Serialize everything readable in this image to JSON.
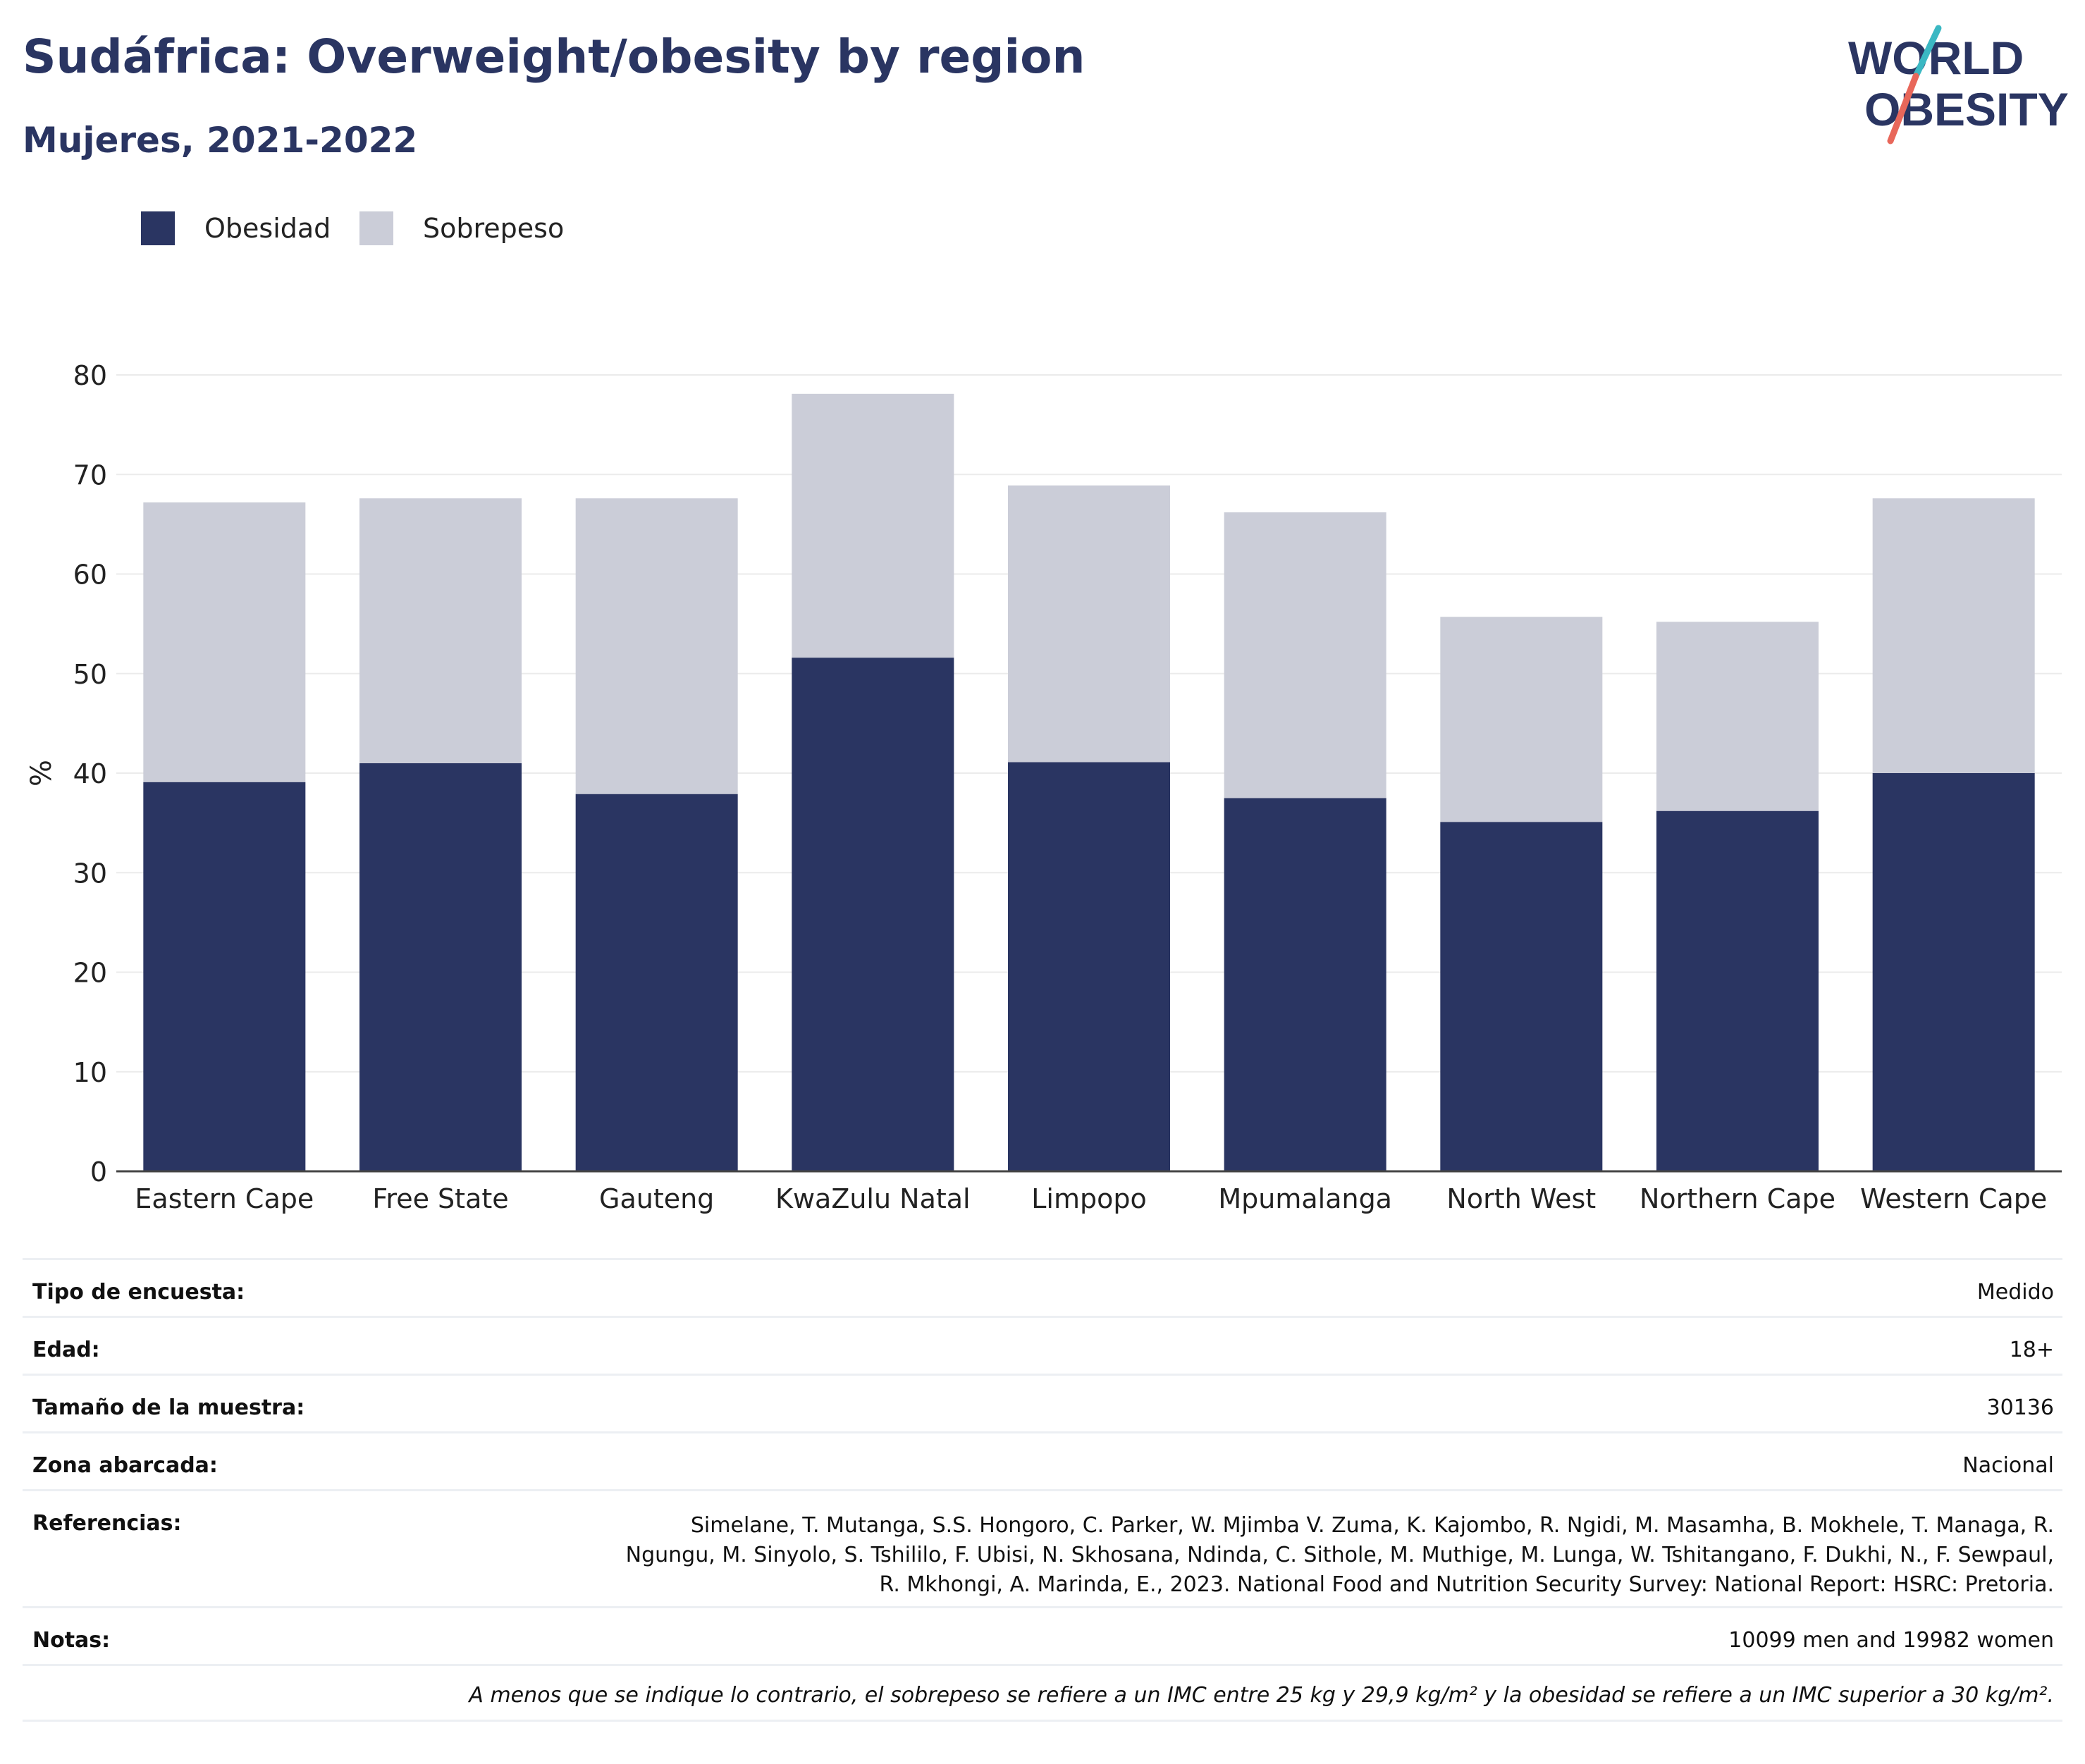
{
  "header": {
    "title": "Sudáfrica: Overweight/obesity by region",
    "subtitle": "Mujeres, 2021-2022"
  },
  "logo": {
    "line1": "WORLD",
    "line2": "OBESITY",
    "text_color": "#2a3562",
    "slash_colors": [
      "#3bb8c3",
      "#e8675a"
    ]
  },
  "colors": {
    "obesity": "#2a3562",
    "overweight": "#cbcdd8",
    "grid": "#ebebeb",
    "axis": "#444444"
  },
  "chart_data": {
    "type": "bar",
    "stacked": true,
    "categories": [
      "Eastern Cape",
      "Free State",
      "Gauteng",
      "KwaZulu Natal",
      "Limpopo",
      "Mpumalanga",
      "North West",
      "Northern Cape",
      "Western Cape"
    ],
    "series": [
      {
        "name": "Obesidad",
        "values": [
          39.1,
          41.0,
          37.9,
          51.6,
          41.1,
          37.5,
          35.1,
          36.2,
          40.0
        ],
        "color": "#2a3562"
      },
      {
        "name": "Sobrepeso",
        "values": [
          28.1,
          26.6,
          29.7,
          26.5,
          27.8,
          28.7,
          20.6,
          19.0,
          27.6
        ],
        "color": "#cbcdd8"
      }
    ],
    "ylabel": "%",
    "ylim": [
      0,
      80
    ],
    "yticks": [
      0,
      10,
      20,
      30,
      40,
      50,
      60,
      70,
      80
    ],
    "grid": true,
    "legend_position": "top-left"
  },
  "info": {
    "rows": [
      {
        "label": "Tipo de encuesta:",
        "value": "Medido"
      },
      {
        "label": "Edad:",
        "value": "18+"
      },
      {
        "label": "Tamaño de la muestra:",
        "value": "30136"
      },
      {
        "label": "Zona abarcada:",
        "value": "Nacional"
      }
    ],
    "references_label": "Referencias:",
    "references_lines": [
      "Simelane, T. Mutanga, S.S. Hongoro, C. Parker, W. Mjimba V. Zuma, K. Kajombo, R. Ngidi, M. Masamha, B. Mokhele, T. Managa, R.",
      "Ngungu, M. Sinyolo, S. Tshililo, F. Ubisi, N. Skhosana, Ndinda, C. Sithole, M. Muthige, M. Lunga, W. Tshitangano, F. Dukhi, N., F. Sewpaul,",
      "R. Mkhongi, A. Marinda, E., 2023. National Food and Nutrition Security Survey: National Report: HSRC: Pretoria."
    ],
    "notes_label": "Notas:",
    "notes_value": "10099 men and 19982 women",
    "footnote": "A menos que se indique lo contrario, el sobrepeso se refiere a un IMC entre 25 kg y 29,9 kg/m² y la obesidad se refiere a un IMC superior a 30 kg/m²."
  }
}
